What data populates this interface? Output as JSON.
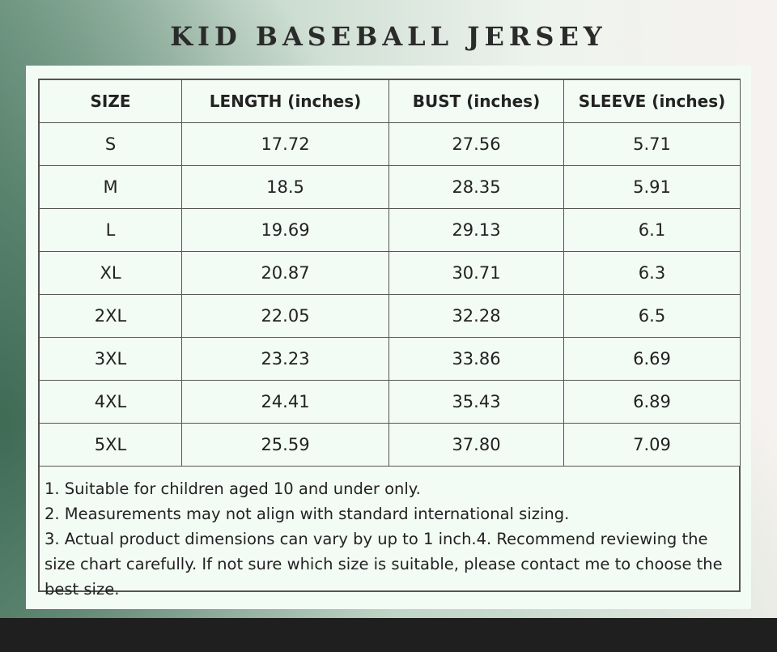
{
  "title": "KID BASEBALL JERSEY",
  "table": {
    "headers": [
      "SIZE",
      "LENGTH (inches)",
      "BUST (inches)",
      "SLEEVE (inches)"
    ],
    "rows": [
      [
        "S",
        "17.72",
        "27.56",
        "5.71"
      ],
      [
        "M",
        "18.5",
        "28.35",
        "5.91"
      ],
      [
        "L",
        "19.69",
        "29.13",
        "6.1"
      ],
      [
        "XL",
        "20.87",
        "30.71",
        "6.3"
      ],
      [
        "2XL",
        "22.05",
        "32.28",
        "6.5"
      ],
      [
        "3XL",
        "23.23",
        "33.86",
        "6.69"
      ],
      [
        "4XL",
        "24.41",
        "35.43",
        "6.89"
      ],
      [
        "5XL",
        "25.59",
        "37.80",
        "7.09"
      ]
    ]
  },
  "notes": [
    "1. Suitable for children aged 10 and under only.",
    "2. Measurements may not align with standard international sizing.",
    "3. Actual product dimensions can vary by up to 1 inch.4. Recommend reviewing the size chart carefully. If not sure which size is suitable, please contact me to choose the best size."
  ],
  "colors": {
    "title_text": "#2b2b2b",
    "card_background": "#f3fbf5",
    "table_border": "#555555",
    "bottom_bar": "#1f1f1f"
  }
}
